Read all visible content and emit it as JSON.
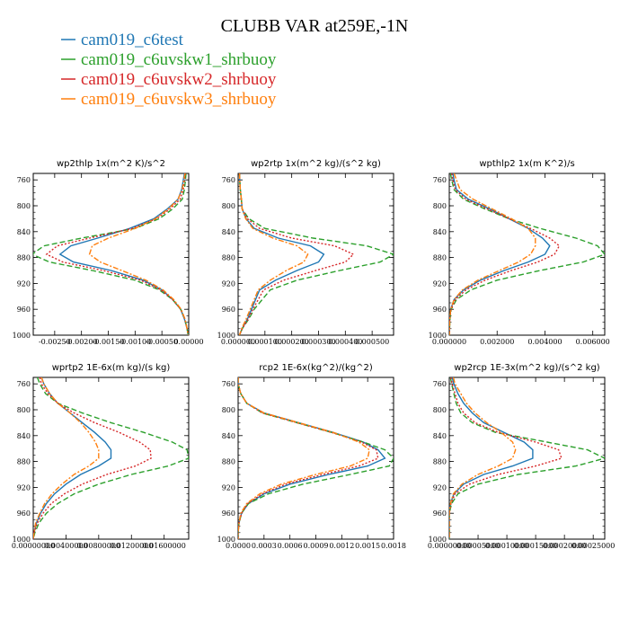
{
  "figure": {
    "title": "CLUBB VAR at259E,-1N"
  },
  "chart_data": {
    "type": "line",
    "title": "CLUBB VAR at259E,-1N",
    "legend": [
      {
        "name": "cam019_c6test",
        "color": "#1f77b4",
        "dash": "solid"
      },
      {
        "name": "cam019_c6uvskw1_shrbuoy",
        "color": "#2ca02c",
        "dash": "dashed"
      },
      {
        "name": "cam019_c6uvskw2_shrbuoy",
        "color": "#d62728",
        "dash": "dotted"
      },
      {
        "name": "cam019_c6uvskw3_shrbuoy",
        "color": "#ff7f0e",
        "dash": "dashdot"
      }
    ],
    "ylim": [
      1000,
      750
    ],
    "yticks": [
      760,
      800,
      840,
      880,
      920,
      960,
      1000
    ],
    "levels": [
      750,
      760,
      775,
      790,
      805,
      820,
      835,
      850,
      862,
      875,
      887,
      900,
      915,
      930,
      945,
      960,
      975,
      990,
      1000
    ],
    "panels": [
      {
        "id": "wp2thlp",
        "title": "wp2thlp   1x(m^2 K)/s^2",
        "xlim": [
          -0.0029,
          0.0
        ],
        "xticks": [
          "-0.00250",
          "-0.00200",
          "-0.00150",
          "-0.00100",
          "-0.00050",
          "0.00000"
        ],
        "xtick_values": [
          -0.0025,
          -0.002,
          -0.0015,
          -0.001,
          -0.0005,
          0.0
        ],
        "series": [
          {
            "name": "cam019_c6test",
            "values": [
              -8e-05,
              -0.0001,
              -0.00013,
              -0.0002,
              -0.0004,
              -0.00065,
              -0.0011,
              -0.0017,
              -0.0022,
              -0.0024,
              -0.00215,
              -0.00145,
              -0.00085,
              -0.0005,
              -0.0003,
              -0.00015,
              -8e-05,
              -3e-05,
              -1e-05
            ]
          },
          {
            "name": "cam019_c6uvskw1_shrbuoy",
            "values": [
              -5e-05,
              -6e-05,
              -8e-05,
              -0.00012,
              -0.0003,
              -0.00055,
              -0.001,
              -0.002,
              -0.0027,
              -0.00292,
              -0.0026,
              -0.0018,
              -0.001,
              -0.00055,
              -0.0003,
              -0.00015,
              -7e-05,
              -3e-05,
              -1e-05
            ]
          },
          {
            "name": "cam019_c6uvskw2_shrbuoy",
            "values": [
              -6e-05,
              -8e-05,
              -0.0001,
              -0.00016,
              -0.00035,
              -0.0006,
              -0.00105,
              -0.00185,
              -0.00245,
              -0.00265,
              -0.00235,
              -0.0016,
              -0.0009,
              -0.00052,
              -0.0003,
              -0.00015,
              -7e-05,
              -3e-05,
              -1e-05
            ]
          },
          {
            "name": "cam019_c6uvskw3_shrbuoy",
            "values": [
              -7e-05,
              -9e-05,
              -0.00012,
              -0.0002,
              -0.00038,
              -0.00062,
              -0.001,
              -0.0015,
              -0.0018,
              -0.00185,
              -0.00165,
              -0.00125,
              -0.0008,
              -0.00048,
              -0.00028,
              -0.00014,
              -7e-05,
              -3e-05,
              -1e-05
            ]
          }
        ]
      },
      {
        "id": "wp2rtp",
        "title": "wp2rtp   1x(m^2 kg)/(s^2 kg)",
        "xlim": [
          0.0,
          0.00058
        ],
        "xticks": [
          "0.000000",
          "0.000100",
          "0.000200",
          "0.000300",
          "0.000400",
          "0.000500"
        ],
        "xtick_values": [
          0.0,
          0.0001,
          0.0002,
          0.0003,
          0.0004,
          0.0005
        ],
        "series": [
          {
            "name": "cam019_c6test",
            "values": [
              5e-06,
              6e-06,
              8e-06,
              1.2e-05,
              1.5e-05,
              3e-05,
              6e-05,
              0.00015,
              0.00027,
              0.00032,
              0.0003,
              0.00022,
              0.00014,
              8e-05,
              6.5e-05,
              5e-05,
              3.5e-05,
              1.5e-05,
              5e-06
            ]
          },
          {
            "name": "cam019_c6uvskw1_shrbuoy",
            "values": [
              5e-06,
              6e-06,
              8e-06,
              1.2e-05,
              1.5e-05,
              4e-05,
              0.0001,
              0.00028,
              0.00048,
              0.00058,
              0.00053,
              0.00038,
              0.00022,
              0.00012,
              9e-05,
              6e-05,
              4e-05,
              1.5e-05,
              5e-06
            ]
          },
          {
            "name": "cam019_c6uvskw2_shrbuoy",
            "values": [
              5e-06,
              6e-06,
              8e-06,
              1.2e-05,
              1.5e-05,
              3.5e-05,
              8e-05,
              0.0002,
              0.00036,
              0.00043,
              0.0004,
              0.00029,
              0.00017,
              9.5e-05,
              7.5e-05,
              5.5e-05,
              3.8e-05,
              1.5e-05,
              5e-06
            ]
          },
          {
            "name": "cam019_c6uvskw3_shrbuoy",
            "values": [
              5e-06,
              6e-06,
              8e-06,
              1.2e-05,
              1.5e-05,
              2.8e-05,
              5.5e-05,
              0.00013,
              0.00022,
              0.00026,
              0.000245,
              0.00018,
              0.00012,
              7.5e-05,
              6e-05,
              4.5e-05,
              3e-05,
              1.3e-05,
              5e-06
            ]
          }
        ]
      },
      {
        "id": "wpthlp2",
        "title": "wpthlp2   1x(m K^2)/s",
        "xlim": [
          0.0,
          0.0065
        ],
        "xticks": [
          "0.000000",
          "0.002000",
          "0.004000",
          "0.006000"
        ],
        "xtick_values": [
          0.0,
          0.002,
          0.004,
          0.006
        ],
        "series": [
          {
            "name": "cam019_c6test",
            "values": [
              0.00015,
              0.0002,
              0.0003,
              0.0008,
              0.0017,
              0.0025,
              0.0033,
              0.0039,
              0.0042,
              0.004,
              0.0033,
              0.0023,
              0.0013,
              0.0006,
              0.0002,
              6e-05,
              2e-05,
              1e-05,
              0.0
            ]
          },
          {
            "name": "cam019_c6uvskw1_shrbuoy",
            "values": [
              5e-05,
              0.0001,
              0.0002,
              0.0006,
              0.0015,
              0.0025,
              0.0038,
              0.0053,
              0.0062,
              0.0065,
              0.0056,
              0.0038,
              0.002,
              0.0009,
              0.0003,
              8e-05,
              3e-05,
              1e-05,
              0.0
            ]
          },
          {
            "name": "cam019_c6uvskw2_shrbuoy",
            "values": [
              0.0001,
              0.00015,
              0.00025,
              0.0007,
              0.0016,
              0.0025,
              0.0034,
              0.0042,
              0.0046,
              0.0044,
              0.0037,
              0.0026,
              0.0015,
              0.0007,
              0.00025,
              7e-05,
              2e-05,
              1e-05,
              0.0
            ]
          },
          {
            "name": "cam019_c6uvskw3_shrbuoy",
            "values": [
              0.0002,
              0.0003,
              0.00045,
              0.001,
              0.0018,
              0.0026,
              0.0033,
              0.0036,
              0.0036,
              0.0034,
              0.0029,
              0.0021,
              0.0012,
              0.00055,
              0.0002,
              6e-05,
              2e-05,
              1e-05,
              0.0
            ]
          }
        ]
      },
      {
        "id": "wprtp2",
        "title": "wprtp2   1E-6x(m kg)/(s kg)",
        "xlim": [
          0.0,
          0.019
        ],
        "xticks": [
          "0.00000000",
          "0.00400000",
          "0.00800000",
          "0.01200000",
          "0.01600000"
        ],
        "xtick_values": [
          0.0,
          0.004,
          0.008,
          0.012,
          0.016
        ],
        "series": [
          {
            "name": "cam019_c6test",
            "values": [
              0.001,
              0.0013,
              0.002,
              0.003,
              0.0045,
              0.006,
              0.0075,
              0.0088,
              0.0095,
              0.0095,
              0.008,
              0.0058,
              0.004,
              0.0026,
              0.0016,
              0.0009,
              0.0004,
              0.0001,
              0.0
            ]
          },
          {
            "name": "cam019_c6uvskw1_shrbuoy",
            "values": [
              0.0005,
              0.0008,
              0.0015,
              0.003,
              0.006,
              0.0095,
              0.0135,
              0.017,
              0.0188,
              0.019,
              0.0165,
              0.012,
              0.008,
              0.005,
              0.003,
              0.0016,
              0.0007,
              0.0002,
              0.0
            ]
          },
          {
            "name": "cam019_c6uvskw2_shrbuoy",
            "values": [
              0.0008,
              0.001,
              0.0018,
              0.003,
              0.005,
              0.0075,
              0.0105,
              0.013,
              0.0143,
              0.0144,
              0.0125,
              0.009,
              0.006,
              0.0038,
              0.0022,
              0.0012,
              0.0005,
              0.0001,
              0.0
            ]
          },
          {
            "name": "cam019_c6uvskw3_shrbuoy",
            "values": [
              0.001,
              0.0013,
              0.002,
              0.003,
              0.0045,
              0.0058,
              0.0068,
              0.0076,
              0.008,
              0.008,
              0.0068,
              0.005,
              0.0035,
              0.0023,
              0.0014,
              0.0008,
              0.0003,
              0.0001,
              0.0
            ]
          }
        ]
      },
      {
        "id": "rcp2",
        "title": "rcp2   1E-6x(kg^2)/(kg^2)",
        "xlim": [
          0.0,
          0.0018
        ],
        "xticks": [
          "0.0000",
          "0.0003",
          "0.0006",
          "0.0009",
          "0.0012",
          "0.0015",
          "0.0018"
        ],
        "xtick_values": [
          0.0,
          0.0003,
          0.0006,
          0.0009,
          0.0012,
          0.0015,
          0.0018
        ],
        "series": [
          {
            "name": "cam019_c6test",
            "values": [
              0.0,
              0.0,
              3e-05,
              0.0001,
              0.0003,
              0.0007,
              0.0011,
              0.00145,
              0.00162,
              0.0017,
              0.0015,
              0.00105,
              0.0006,
              0.0003,
              0.00012,
              4e-05,
              1e-05,
              0.0,
              0.0
            ]
          },
          {
            "name": "cam019_c6uvskw1_shrbuoy",
            "values": [
              0.0,
              0.0,
              3e-05,
              0.0001,
              0.00028,
              0.00068,
              0.00108,
              0.00145,
              0.0017,
              0.0018,
              0.00175,
              0.0013,
              0.00075,
              0.00035,
              0.00012,
              4e-05,
              1e-05,
              0.0,
              0.0
            ]
          },
          {
            "name": "cam019_c6uvskw2_shrbuoy",
            "values": [
              0.0,
              0.0,
              3e-05,
              0.0001,
              0.00028,
              0.00068,
              0.00108,
              0.00143,
              0.0016,
              0.00162,
              0.0014,
              0.00098,
              0.00055,
              0.00028,
              0.00011,
              4e-05,
              1e-05,
              0.0,
              0.0
            ]
          },
          {
            "name": "cam019_c6uvskw3_shrbuoy",
            "values": [
              0.0,
              0.0,
              3e-05,
              0.0001,
              0.0003,
              0.0007,
              0.0011,
              0.0014,
              0.00152,
              0.0015,
              0.0013,
              0.0009,
              0.0005,
              0.00025,
              0.0001,
              3e-05,
              1e-05,
              0.0,
              0.0
            ]
          }
        ]
      },
      {
        "id": "wp2rcp",
        "title": "wp2rcp   1E-3x(m^2 kg)/(s^2 kg)",
        "xlim": [
          0.0,
          0.00027
        ],
        "xticks": [
          "0.00000000",
          "0.00005000",
          "0.00010000",
          "0.00015000",
          "0.00020000",
          "0.00025000"
        ],
        "xtick_values": [
          0.0,
          5e-05,
          0.0001,
          0.00015,
          0.0002,
          0.00025
        ],
        "series": [
          {
            "name": "cam019_c6test",
            "values": [
              5e-06,
              8e-06,
              1.5e-05,
              2.5e-05,
              4e-05,
              6e-05,
              9.5e-05,
              0.00013,
              0.000145,
              0.000145,
              0.00011,
              6e-05,
              2.5e-05,
              8e-06,
              2e-06,
              0.0,
              0.0,
              0.0,
              0.0
            ]
          },
          {
            "name": "cam019_c6uvskw1_shrbuoy",
            "values": [
              2e-06,
              4e-06,
              8e-06,
              1.2e-05,
              2e-05,
              4e-05,
              8e-05,
              0.00017,
              0.00024,
              0.00027,
              0.00022,
              0.00012,
              5e-05,
              1.5e-05,
              4e-06,
              0.0,
              0.0,
              0.0,
              0.0
            ]
          },
          {
            "name": "cam019_c6uvskw2_shrbuoy",
            "values": [
              3e-06,
              5e-06,
              1e-05,
              1.5e-05,
              2.5e-05,
              4.5e-05,
              8.5e-05,
              0.00015,
              0.00019,
              0.000195,
              0.00015,
              8.5e-05,
              3.5e-05,
              1e-05,
              3e-06,
              0.0,
              0.0,
              0.0,
              0.0
            ]
          },
          {
            "name": "cam019_c6uvskw3_shrbuoy",
            "values": [
              7e-06,
              1e-05,
              2e-05,
              3e-05,
              4.5e-05,
              6.5e-05,
              9e-05,
              0.00011,
              0.000115,
              0.00011,
              8.5e-05,
              5e-05,
              2.2e-05,
              7e-06,
              2e-06,
              0.0,
              0.0,
              0.0,
              0.0
            ]
          }
        ]
      }
    ]
  }
}
